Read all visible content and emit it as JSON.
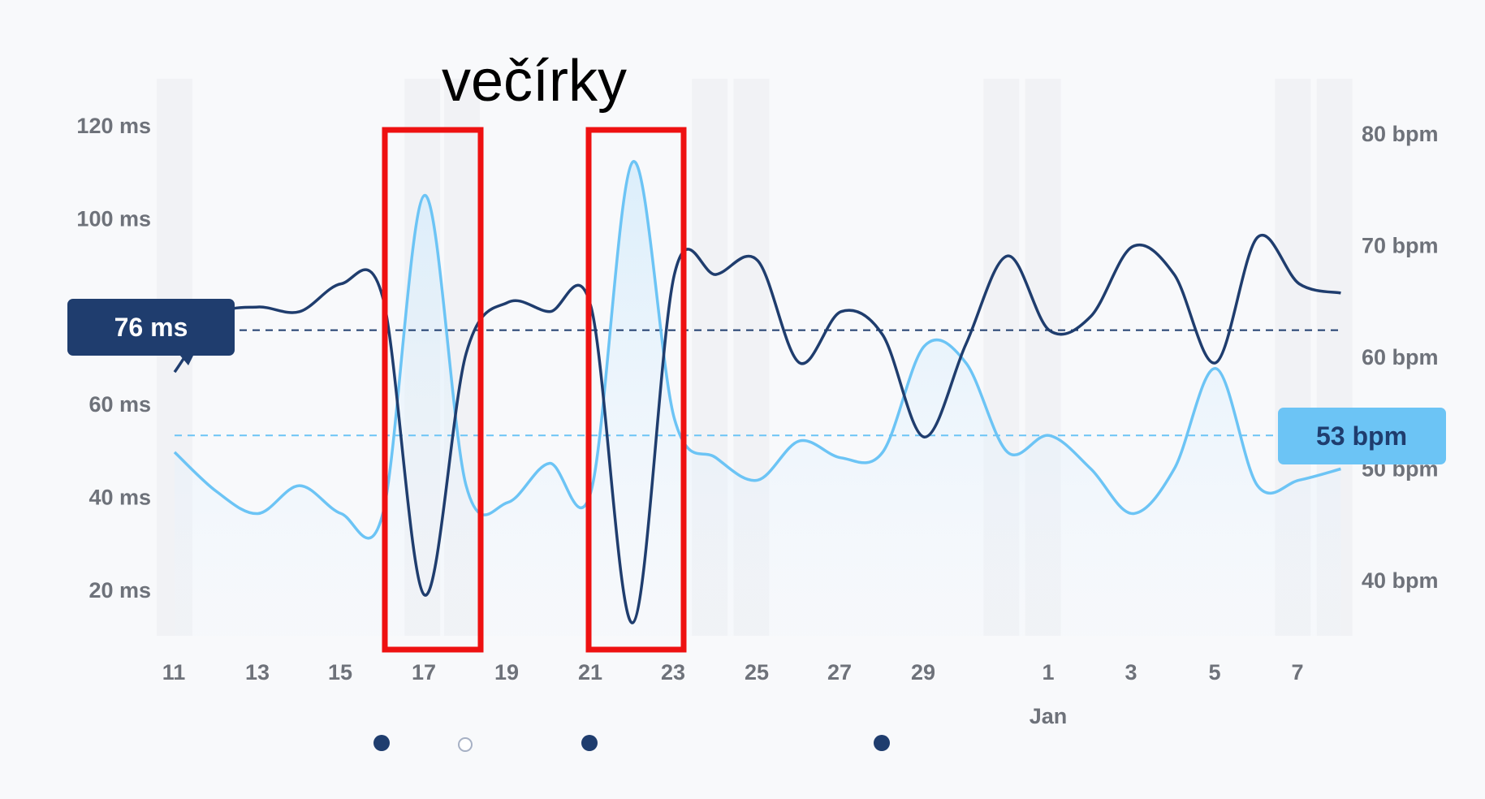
{
  "chart_data": {
    "type": "line",
    "annotation": "večírky",
    "x_tick_labels": [
      "11",
      "13",
      "15",
      "17",
      "19",
      "21",
      "23",
      "25",
      "27",
      "29",
      "1",
      "3",
      "5",
      "7"
    ],
    "x_month_label": "Jan",
    "y_left": {
      "unit": "ms",
      "ticks": [
        "120 ms",
        "100 ms",
        "60 ms",
        "40 ms",
        "20 ms"
      ],
      "tick_values": [
        120,
        100,
        60,
        40,
        20
      ],
      "ylim": [
        10,
        130
      ]
    },
    "y_right": {
      "unit": "bpm",
      "ticks": [
        "80 bpm",
        "70 bpm",
        "60 bpm",
        "50 bpm",
        "40 bpm"
      ],
      "tick_values": [
        80,
        70,
        60,
        50,
        40
      ],
      "ylim": [
        35,
        85
      ]
    },
    "series": [
      {
        "axis": "left",
        "color": "#1f3d6e",
        "x": [
          11,
          12,
          13,
          14,
          15,
          16,
          17,
          18,
          19,
          20,
          21,
          22,
          23,
          24,
          25,
          26,
          27,
          28,
          29,
          30,
          31,
          32,
          33,
          34,
          35,
          36,
          37,
          38,
          39
        ],
        "values": [
          67,
          79,
          81,
          80,
          86,
          83,
          19,
          71,
          82,
          80,
          81,
          13,
          88,
          88,
          91,
          69,
          80,
          75,
          53,
          73,
          92,
          76,
          79,
          94,
          88,
          69,
          96,
          86,
          84
        ],
        "average": 76,
        "average_label": "76 ms"
      },
      {
        "axis": "right",
        "color": "#6cc4f5",
        "x": [
          11,
          12,
          13,
          14,
          15,
          16,
          17,
          18,
          19,
          20,
          21,
          22,
          23,
          24,
          25,
          26,
          27,
          28,
          29,
          30,
          31,
          32,
          33,
          34,
          35,
          36,
          37,
          38,
          39
        ],
        "values": [
          51.5,
          48,
          46,
          48.5,
          46,
          46,
          74.5,
          48.5,
          47,
          50.5,
          48,
          77.5,
          54.5,
          51,
          49,
          52.5,
          51,
          51.5,
          61,
          59.5,
          51.5,
          53,
          50,
          46,
          50,
          59,
          48.5,
          49,
          50
        ],
        "average": 53,
        "average_label": "53 bpm"
      }
    ],
    "highlighted_ranges": [
      [
        16.1,
        17.4
      ],
      [
        21,
        22.2
      ]
    ],
    "grid": false,
    "legend": "none"
  },
  "colors": {
    "highlight_box": "#ee1111",
    "shaded_band": "#f1f2f5",
    "dot_filled": "#1f3d6e",
    "dot_hollow_fill": "#ffffff",
    "dot_hollow_stroke": "#a6b0c4"
  }
}
